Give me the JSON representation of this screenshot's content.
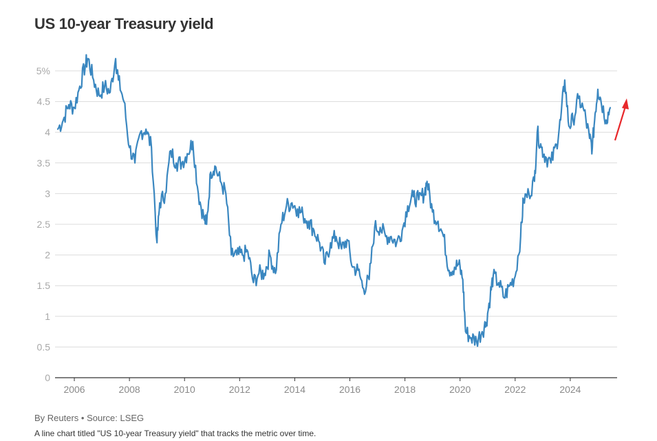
{
  "chart_data": {
    "type": "line",
    "title": "US 10-year Treasury yield",
    "ylabel": "",
    "xlabel": "",
    "ylim": [
      0,
      5
    ],
    "xlim": [
      2005.3,
      2025.7
    ],
    "grid": true,
    "yticks": [
      {
        "value": 0,
        "label": "0"
      },
      {
        "value": 0.5,
        "label": "0.5"
      },
      {
        "value": 1,
        "label": "1"
      },
      {
        "value": 1.5,
        "label": "1.5"
      },
      {
        "value": 2,
        "label": "2"
      },
      {
        "value": 2.5,
        "label": "2.5"
      },
      {
        "value": 3,
        "label": "3"
      },
      {
        "value": 3.5,
        "label": "3.5"
      },
      {
        "value": 4,
        "label": "4"
      },
      {
        "value": 4.5,
        "label": "4.5"
      },
      {
        "value": 5,
        "label": "5%"
      }
    ],
    "xticks": [
      {
        "value": 2006,
        "label": "2006"
      },
      {
        "value": 2008,
        "label": "2008"
      },
      {
        "value": 2010,
        "label": "2010"
      },
      {
        "value": 2012,
        "label": "2012"
      },
      {
        "value": 2014,
        "label": "2014"
      },
      {
        "value": 2016,
        "label": "2016"
      },
      {
        "value": 2018,
        "label": "2018"
      },
      {
        "value": 2020,
        "label": "2020"
      },
      {
        "value": 2022,
        "label": "2022"
      },
      {
        "value": 2024,
        "label": "2024"
      }
    ],
    "series": [
      {
        "color": "#3a87c0",
        "points": [
          [
            2005.4,
            4.05
          ],
          [
            2005.6,
            4.2
          ],
          [
            2005.8,
            4.45
          ],
          [
            2006.0,
            4.4
          ],
          [
            2006.2,
            4.75
          ],
          [
            2006.4,
            5.1
          ],
          [
            2006.5,
            5.2
          ],
          [
            2006.7,
            4.85
          ],
          [
            2006.9,
            4.6
          ],
          [
            2007.1,
            4.75
          ],
          [
            2007.3,
            4.65
          ],
          [
            2007.5,
            5.2
          ],
          [
            2007.6,
            4.85
          ],
          [
            2007.8,
            4.5
          ],
          [
            2008.0,
            3.75
          ],
          [
            2008.2,
            3.5
          ],
          [
            2008.4,
            4.0
          ],
          [
            2008.6,
            4.05
          ],
          [
            2008.8,
            3.75
          ],
          [
            2009.0,
            2.2
          ],
          [
            2009.1,
            2.85
          ],
          [
            2009.3,
            3.0
          ],
          [
            2009.5,
            3.7
          ],
          [
            2009.7,
            3.5
          ],
          [
            2009.9,
            3.5
          ],
          [
            2010.1,
            3.65
          ],
          [
            2010.3,
            3.85
          ],
          [
            2010.5,
            3.0
          ],
          [
            2010.7,
            2.6
          ],
          [
            2010.8,
            2.5
          ],
          [
            2010.95,
            3.35
          ],
          [
            2011.1,
            3.45
          ],
          [
            2011.3,
            3.2
          ],
          [
            2011.5,
            3.0
          ],
          [
            2011.7,
            2.0
          ],
          [
            2011.9,
            2.0
          ],
          [
            2012.1,
            2.0
          ],
          [
            2012.3,
            2.05
          ],
          [
            2012.5,
            1.55
          ],
          [
            2012.7,
            1.7
          ],
          [
            2012.9,
            1.7
          ],
          [
            2013.1,
            2.0
          ],
          [
            2013.3,
            1.7
          ],
          [
            2013.5,
            2.5
          ],
          [
            2013.7,
            2.8
          ],
          [
            2013.9,
            2.85
          ],
          [
            2014.1,
            2.75
          ],
          [
            2014.3,
            2.65
          ],
          [
            2014.5,
            2.55
          ],
          [
            2014.7,
            2.4
          ],
          [
            2014.9,
            2.2
          ],
          [
            2015.1,
            1.85
          ],
          [
            2015.3,
            2.2
          ],
          [
            2015.5,
            2.3
          ],
          [
            2015.7,
            2.1
          ],
          [
            2015.9,
            2.25
          ],
          [
            2016.1,
            1.8
          ],
          [
            2016.3,
            1.75
          ],
          [
            2016.5,
            1.45
          ],
          [
            2016.7,
            1.6
          ],
          [
            2016.9,
            2.45
          ],
          [
            2017.1,
            2.45
          ],
          [
            2017.3,
            2.3
          ],
          [
            2017.5,
            2.3
          ],
          [
            2017.7,
            2.2
          ],
          [
            2017.9,
            2.4
          ],
          [
            2018.1,
            2.8
          ],
          [
            2018.3,
            2.95
          ],
          [
            2018.5,
            2.9
          ],
          [
            2018.7,
            3.0
          ],
          [
            2018.8,
            3.2
          ],
          [
            2019.0,
            2.7
          ],
          [
            2019.2,
            2.55
          ],
          [
            2019.4,
            2.3
          ],
          [
            2019.6,
            1.75
          ],
          [
            2019.8,
            1.8
          ],
          [
            2019.95,
            1.85
          ],
          [
            2020.1,
            1.6
          ],
          [
            2020.2,
            0.75
          ],
          [
            2020.4,
            0.65
          ],
          [
            2020.6,
            0.6
          ],
          [
            2020.8,
            0.75
          ],
          [
            2020.95,
            0.9
          ],
          [
            2021.1,
            1.35
          ],
          [
            2021.2,
            1.65
          ],
          [
            2021.4,
            1.55
          ],
          [
            2021.6,
            1.3
          ],
          [
            2021.8,
            1.5
          ],
          [
            2022.0,
            1.65
          ],
          [
            2022.2,
            2.3
          ],
          [
            2022.3,
            2.9
          ],
          [
            2022.5,
            3.0
          ],
          [
            2022.7,
            3.2
          ],
          [
            2022.8,
            4.0
          ],
          [
            2022.95,
            3.75
          ],
          [
            2023.1,
            3.6
          ],
          [
            2023.3,
            3.5
          ],
          [
            2023.5,
            3.8
          ],
          [
            2023.65,
            4.2
          ],
          [
            2023.8,
            4.85
          ],
          [
            2023.95,
            4.1
          ],
          [
            2024.1,
            4.2
          ],
          [
            2024.3,
            4.55
          ],
          [
            2024.5,
            4.35
          ],
          [
            2024.7,
            3.9
          ],
          [
            2024.8,
            3.75
          ],
          [
            2024.9,
            4.3
          ],
          [
            2025.0,
            4.7
          ],
          [
            2025.1,
            4.55
          ],
          [
            2025.3,
            4.2
          ],
          [
            2025.45,
            4.4
          ]
        ]
      }
    ]
  },
  "source": "By Reuters • Source: LSEG",
  "description": "A line chart titled \"US 10-year Treasury yield\" that tracks the metric over time.",
  "annotation_color": "#e8282b"
}
